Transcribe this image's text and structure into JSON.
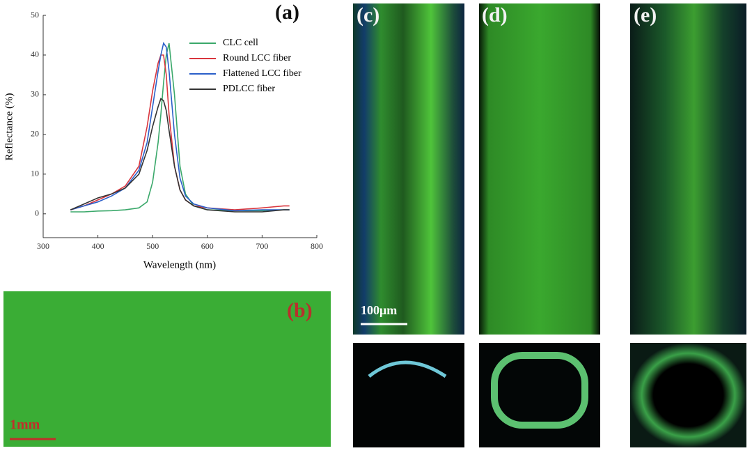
{
  "chart_data": {
    "type": "line",
    "panel_label": "(a)",
    "x_label": "Wavelength (nm)",
    "y_label": "Reflectance (%)",
    "x": [
      350,
      375,
      400,
      425,
      450,
      475,
      490,
      500,
      510,
      515,
      520,
      525,
      530,
      540,
      550,
      560,
      575,
      600,
      650,
      700,
      740,
      750
    ],
    "series": [
      {
        "name": "CLC cell",
        "color": "#3aa86a",
        "values": [
          0.5,
          0.5,
          0.7,
          0.8,
          1,
          1.5,
          3,
          8,
          18,
          25,
          33,
          40,
          43,
          30,
          12,
          5,
          2,
          1,
          0.8,
          0.8,
          1,
          1
        ]
      },
      {
        "name": "Round LCC fiber",
        "color": "#d9363e",
        "values": [
          1,
          2,
          3.5,
          5,
          7,
          12,
          22,
          31,
          38,
          40,
          40,
          35,
          25,
          12,
          6,
          3.5,
          2,
          1.5,
          1,
          1.5,
          2,
          2
        ]
      },
      {
        "name": "Flattened LCC fiber",
        "color": "#2b5fc9",
        "values": [
          1,
          2,
          3,
          4.5,
          6.5,
          11,
          18,
          27,
          36,
          40,
          43,
          42,
          36,
          20,
          9,
          4.5,
          2.5,
          1.5,
          0.8,
          1,
          1,
          1
        ]
      },
      {
        "name": "PDLCC fiber",
        "color": "#333333",
        "values": [
          1,
          2.5,
          4,
          5,
          6.5,
          10,
          16,
          22,
          27,
          29,
          28.5,
          26,
          21,
          12,
          6,
          3.5,
          2,
          1,
          0.5,
          0.5,
          1,
          1
        ]
      }
    ],
    "xlim": [
      300,
      800
    ],
    "xticks": [
      300,
      400,
      500,
      600,
      700,
      800
    ],
    "ylim": [
      -6,
      50
    ],
    "yticks": [
      0,
      10,
      20,
      30,
      40,
      50
    ],
    "legend": "upper right"
  },
  "panels": {
    "b": {
      "label": "(b)",
      "scale_bar": "1mm"
    },
    "c": {
      "label": "(c)",
      "scale_bar": "100μm"
    },
    "d": {
      "label": "(d)"
    },
    "e": {
      "label": "(e)"
    }
  }
}
